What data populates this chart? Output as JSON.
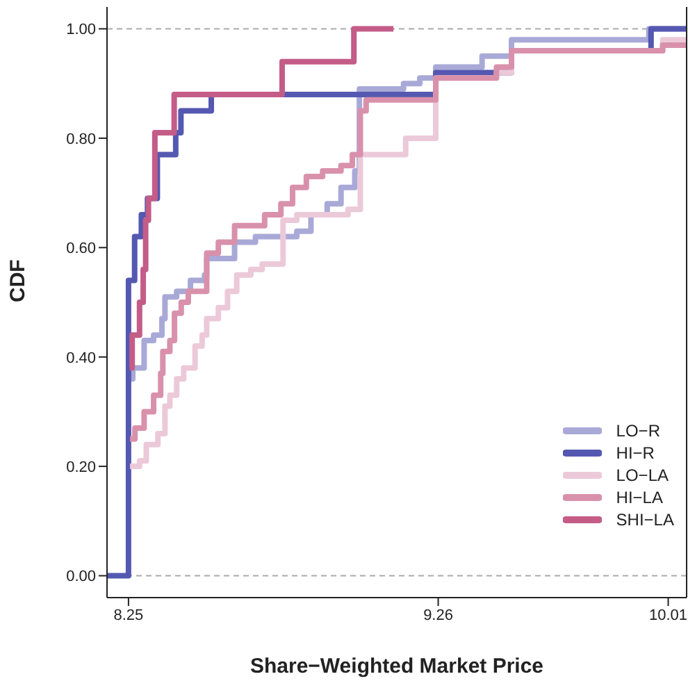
{
  "chart_data": {
    "type": "step",
    "xlabel": "Share−Weighted Market Price",
    "ylabel": "CDF",
    "xlim": [
      8.18,
      10.07
    ],
    "ylim": [
      -0.04,
      1.04
    ],
    "xticks": [
      8.25,
      9.26,
      10.01
    ],
    "yticks": [
      {
        "value": 0,
        "label": "0.00"
      },
      {
        "value": 0.2,
        "label": "0.20"
      },
      {
        "value": 0.4,
        "label": "0.40"
      },
      {
        "value": 0.6,
        "label": "0.60"
      },
      {
        "value": 0.8,
        "label": "0.80"
      },
      {
        "value": 1,
        "label": "1.00"
      }
    ],
    "legend": "bottom right",
    "line_style": "solid",
    "marker": "none",
    "ref_lines": [
      {
        "axis": "y",
        "value": 0,
        "color": "#aaaaaa",
        "line_style": "dashed"
      },
      {
        "axis": "y",
        "value": 1,
        "color": "#aaaaaa",
        "line_style": "dashed"
      }
    ],
    "series": [
      {
        "name": "LO−R",
        "color": "#a9a9d8",
        "x": [
          8.255,
          8.264,
          8.301,
          8.332,
          8.359,
          8.369,
          8.407,
          8.452,
          8.498,
          8.505,
          8.558,
          8.596,
          8.664,
          8.769,
          8.799,
          8.845,
          8.898,
          8.943,
          8.988,
          9.003,
          9.147,
          9.2,
          9.252,
          9.403,
          9.471,
          9.499,
          9.75,
          9.947,
          10.07
        ],
        "values": [
          0.36,
          0.38,
          0.43,
          0.44,
          0.47,
          0.51,
          0.52,
          0.54,
          0.55,
          0.58,
          0.58,
          0.61,
          0.62,
          0.62,
          0.63,
          0.66,
          0.68,
          0.71,
          0.74,
          0.89,
          0.9,
          0.91,
          0.93,
          0.95,
          0.95,
          0.98,
          0.98,
          1,
          1
        ]
      },
      {
        "name": "HI−R",
        "color": "#5558b0",
        "x": [
          8.18,
          8.25,
          8.27,
          8.292,
          8.312,
          8.344,
          8.404,
          8.421,
          8.52,
          9.252,
          9.499,
          9.954,
          10.07
        ],
        "values": [
          0,
          0.54,
          0.62,
          0.66,
          0.69,
          0.77,
          0.81,
          0.85,
          0.88,
          0.92,
          0.96,
          1,
          1
        ]
      },
      {
        "name": "LO−LA",
        "color": "#ecc9d8",
        "x": [
          8.255,
          8.286,
          8.308,
          8.346,
          8.369,
          8.385,
          8.407,
          8.43,
          8.467,
          8.49,
          8.505,
          8.543,
          8.573,
          8.603,
          8.649,
          8.686,
          8.754,
          8.799,
          8.86,
          8.966,
          9.006,
          9.086,
          9.154,
          9.252,
          9.45,
          9.499,
          9.992,
          10.07
        ],
        "values": [
          0.2,
          0.21,
          0.24,
          0.26,
          0.31,
          0.33,
          0.36,
          0.38,
          0.42,
          0.44,
          0.47,
          0.49,
          0.52,
          0.55,
          0.56,
          0.57,
          0.65,
          0.66,
          0.66,
          0.67,
          0.77,
          0.77,
          0.8,
          0.91,
          0.92,
          0.96,
          0.98,
          0.98
        ]
      },
      {
        "name": "HI−LA",
        "color": "#d991ab",
        "x": [
          8.255,
          8.271,
          8.301,
          8.332,
          8.355,
          8.362,
          8.385,
          8.4,
          8.422,
          8.445,
          8.505,
          8.543,
          8.596,
          8.694,
          8.747,
          8.785,
          8.83,
          8.883,
          8.943,
          8.98,
          9.006,
          9.025,
          9.252,
          9.45,
          9.499,
          9.992,
          10.07
        ],
        "values": [
          0.25,
          0.27,
          0.3,
          0.33,
          0.37,
          0.41,
          0.43,
          0.48,
          0.5,
          0.52,
          0.59,
          0.61,
          0.64,
          0.66,
          0.68,
          0.71,
          0.73,
          0.74,
          0.75,
          0.77,
          0.85,
          0.87,
          0.91,
          0.93,
          0.96,
          0.97,
          0.97
        ]
      },
      {
        "name": "SHI−LA",
        "color": "#c45c88",
        "x": [
          8.254,
          8.262,
          8.286,
          8.298,
          8.306,
          8.315,
          8.336,
          8.399,
          8.751,
          8.985,
          9.114
        ],
        "values": [
          0.38,
          0.44,
          0.5,
          0.56,
          0.65,
          0.69,
          0.81,
          0.88,
          0.94,
          1,
          1
        ]
      }
    ]
  }
}
